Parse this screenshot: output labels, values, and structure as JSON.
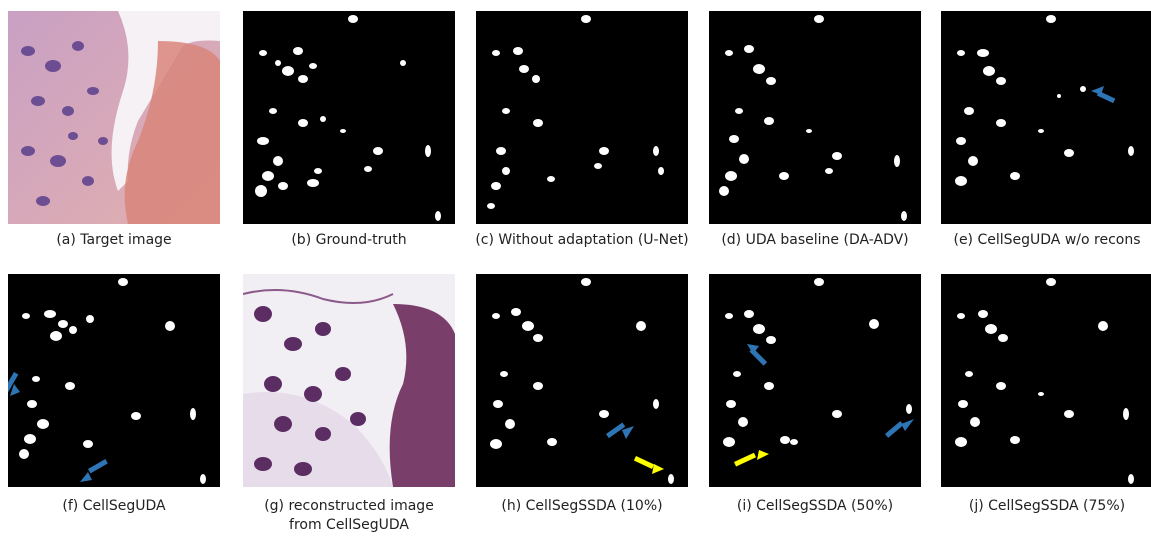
{
  "figure": {
    "panels": [
      {
        "id": "a",
        "caption": "(a) Target image",
        "type": "tissue-image"
      },
      {
        "id": "b",
        "caption": "(b) Ground-truth",
        "type": "mask"
      },
      {
        "id": "c",
        "caption": "(c) Without adaptation (U-Net)",
        "type": "mask"
      },
      {
        "id": "d",
        "caption": "(d) UDA baseline (DA-ADV)",
        "type": "mask"
      },
      {
        "id": "e",
        "caption": "(e) CellSegUDA w/o recons",
        "type": "mask",
        "arrows": [
          "blue-arrow"
        ]
      },
      {
        "id": "f",
        "caption": "(f) CellSegUDA",
        "type": "mask",
        "arrows": [
          "blue-arrow",
          "blue-arrow"
        ]
      },
      {
        "id": "g",
        "caption_line1": "(g) reconstructed image",
        "caption_line2": "from CellSegUDA",
        "type": "reconstructed-image"
      },
      {
        "id": "h",
        "caption": "(h) CellSegSSDA (10%)",
        "type": "mask",
        "arrows": [
          "blue-arrow",
          "yellow-arrow"
        ]
      },
      {
        "id": "i",
        "caption": "(i) CellSegSSDA (50%)",
        "type": "mask",
        "arrows": [
          "blue-arrow",
          "yellow-arrow",
          "blue-arrow"
        ]
      },
      {
        "id": "j",
        "caption": "(j) CellSegSSDA (75%)",
        "type": "mask"
      }
    ],
    "colors": {
      "mask_bg": "#000000",
      "nucleus": "#ffffff",
      "blue_arrow": "#2e75b6",
      "yellow_arrow": "#ffff00",
      "tissue_pink": "#d9a5a6",
      "tissue_nucleus": "#5b3f8c"
    }
  }
}
